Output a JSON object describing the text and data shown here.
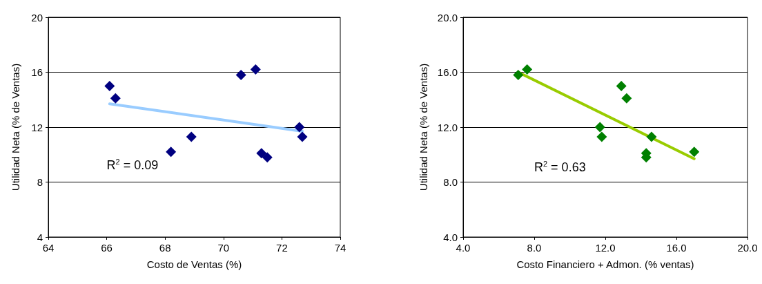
{
  "chart_data": [
    {
      "type": "scatter",
      "xlabel": "Costo de Ventas (%)",
      "ylabel": "Utilidad Neta (% de Ventas)",
      "xlim": [
        64,
        74
      ],
      "xticks": [
        64,
        66,
        68,
        70,
        72,
        74
      ],
      "ylim": [
        4,
        20
      ],
      "yticks": [
        4,
        8,
        12,
        16,
        20
      ],
      "grid": "y",
      "line_style": "solid",
      "annotations": [
        "R$^{2}$ = 0.09"
      ],
      "series": [
        {
          "marker": "diamond",
          "color": "#000080",
          "x": [
            66.1,
            66.3,
            68.2,
            68.9,
            70.6,
            71.1,
            71.3,
            71.5,
            72.6,
            72.7
          ],
          "values": [
            15.0,
            14.1,
            10.2,
            11.3,
            15.8,
            16.2,
            10.1,
            9.8,
            12.0,
            11.3
          ]
        },
        {
          "type": "line",
          "marker": "none",
          "color": "#99ccff",
          "x": [
            66.1,
            72.7
          ],
          "values": [
            13.7,
            11.7
          ]
        }
      ]
    },
    {
      "type": "scatter",
      "xlabel": "Costo Financiero + Admon. (% ventas)",
      "ylabel": "Utilidad Neta (% de Ventas)",
      "xlim": [
        4,
        20
      ],
      "xticks": [
        {
          "value": 4,
          "label": "4.0"
        },
        {
          "value": 8,
          "label": "8.0"
        },
        {
          "value": 12,
          "label": "12.0"
        },
        {
          "value": 16,
          "label": "16.0"
        },
        {
          "value": 20,
          "label": "20.0"
        }
      ],
      "ylim": [
        4,
        20
      ],
      "yticks": [
        {
          "value": 4,
          "label": "4.0"
        },
        {
          "value": 8,
          "label": "8.0"
        },
        {
          "value": 12,
          "label": "12.0"
        },
        {
          "value": 16,
          "label": "16.0"
        },
        {
          "value": 20,
          "label": "20.0"
        }
      ],
      "grid": "y",
      "line_style": "solid",
      "annotations": [
        "R$^{2}$ = 0.63"
      ],
      "series": [
        {
          "marker": "diamond",
          "color": "#008000",
          "x": [
            7.1,
            7.6,
            12.9,
            13.2,
            11.7,
            11.8,
            14.6,
            14.3,
            14.3,
            17.0
          ],
          "values": [
            15.8,
            16.2,
            15.0,
            14.1,
            12.0,
            11.3,
            11.3,
            10.1,
            9.8,
            10.2
          ]
        },
        {
          "type": "line",
          "marker": "none",
          "color": "#99cc00",
          "x": [
            7.1,
            17.0
          ],
          "values": [
            16.0,
            9.7
          ]
        }
      ]
    }
  ]
}
